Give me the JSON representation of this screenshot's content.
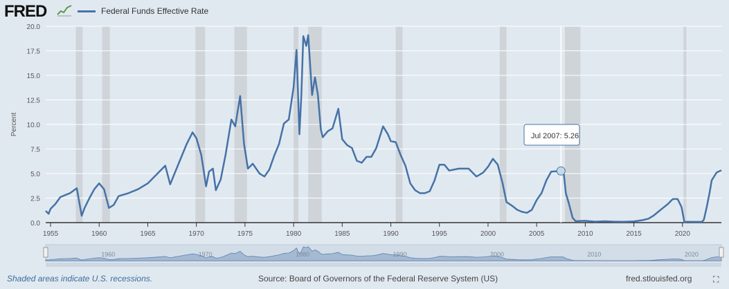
{
  "header": {
    "logo_text": "FRED",
    "legend_label": "Federal Funds Effective Rate",
    "series_color": "#4572a7"
  },
  "tooltip": {
    "date": "Jul 2007",
    "value": "5.26"
  },
  "footer": {
    "left": "Shaded areas indicate U.S. recessions.",
    "center": "Source: Board of Governors of the Federal Reserve System (US)",
    "right": "fred.stlouisfed.org"
  },
  "chart_data": {
    "type": "line",
    "title": "",
    "xlabel": "",
    "ylabel": "Percent",
    "xlim": [
      1954.5,
      2024.0
    ],
    "ylim": [
      0,
      20
    ],
    "yticks": [
      "0.0",
      "2.5",
      "5.0",
      "7.5",
      "10.0",
      "12.5",
      "15.0",
      "17.5",
      "20.0"
    ],
    "xticks": [
      "1955",
      "1960",
      "1965",
      "1970",
      "1975",
      "1980",
      "1985",
      "1990",
      "1995",
      "2000",
      "2005",
      "2010",
      "2015",
      "2020"
    ],
    "navigator_ticks": [
      "1960",
      "1970",
      "1980",
      "1990",
      "2000",
      "2010",
      "2020"
    ],
    "grid": true,
    "legend": "top-left",
    "recessions": [
      [
        1957.6,
        1958.3
      ],
      [
        1960.3,
        1961.1
      ],
      [
        1969.9,
        1970.9
      ],
      [
        1973.9,
        1975.2
      ],
      [
        1980.0,
        1980.5
      ],
      [
        1981.5,
        1982.9
      ],
      [
        1990.5,
        1991.2
      ],
      [
        2001.2,
        2001.9
      ],
      [
        2007.9,
        2009.5
      ],
      [
        2020.1,
        2020.4
      ]
    ],
    "series": [
      {
        "name": "Federal Funds Effective Rate",
        "x": [
          1954.5,
          1954.8,
          1955.0,
          1955.5,
          1956.0,
          1956.5,
          1957.0,
          1957.7,
          1958.2,
          1958.5,
          1959.0,
          1959.5,
          1960.0,
          1960.5,
          1961.0,
          1961.5,
          1962.0,
          1963.0,
          1964.0,
          1965.0,
          1966.0,
          1966.8,
          1967.3,
          1968.0,
          1969.0,
          1969.6,
          1970.0,
          1970.5,
          1971.0,
          1971.3,
          1971.7,
          1972.0,
          1972.5,
          1973.0,
          1973.6,
          1974.0,
          1974.5,
          1974.9,
          1975.3,
          1975.8,
          1976.5,
          1977.0,
          1977.5,
          1978.0,
          1978.5,
          1979.0,
          1979.5,
          1980.0,
          1980.3,
          1980.6,
          1980.8,
          1981.0,
          1981.3,
          1981.5,
          1981.9,
          1982.2,
          1982.5,
          1982.8,
          1983.0,
          1983.5,
          1984.0,
          1984.6,
          1985.0,
          1985.5,
          1986.0,
          1986.5,
          1987.0,
          1987.5,
          1988.0,
          1988.5,
          1989.2,
          1989.7,
          1990.0,
          1990.5,
          1991.0,
          1991.5,
          1992.0,
          1992.5,
          1993.0,
          1993.5,
          1994.0,
          1994.5,
          1995.0,
          1995.5,
          1996.0,
          1997.0,
          1998.0,
          1998.8,
          1999.0,
          1999.5,
          2000.0,
          2000.5,
          2001.0,
          2001.5,
          2001.9,
          2002.5,
          2003.0,
          2003.5,
          2004.0,
          2004.5,
          2005.0,
          2005.5,
          2006.0,
          2006.5,
          2007.5,
          2007.8,
          2008.0,
          2008.3,
          2008.7,
          2009.0,
          2010.0,
          2011.0,
          2012.0,
          2013.0,
          2014.0,
          2015.0,
          2015.9,
          2016.5,
          2017.0,
          2017.5,
          2018.0,
          2018.5,
          2019.0,
          2019.5,
          2019.9,
          2020.2,
          2020.5,
          2021.0,
          2021.5,
          2022.0,
          2022.2,
          2022.5,
          2022.8,
          2023.0,
          2023.5,
          2024.0
        ],
        "y": [
          1.2,
          0.9,
          1.4,
          1.9,
          2.6,
          2.8,
          3.0,
          3.5,
          0.7,
          1.5,
          2.5,
          3.4,
          4.0,
          3.4,
          1.5,
          1.8,
          2.7,
          3.0,
          3.4,
          4.0,
          5.0,
          5.8,
          3.9,
          5.6,
          8.0,
          9.2,
          8.6,
          6.9,
          3.7,
          5.2,
          5.5,
          3.3,
          4.4,
          6.9,
          10.5,
          9.8,
          12.9,
          8.0,
          5.5,
          6.0,
          5.0,
          4.7,
          5.4,
          6.8,
          8.0,
          10.1,
          10.5,
          13.8,
          17.6,
          9.0,
          13.0,
          19.0,
          18.0,
          19.1,
          13.0,
          14.8,
          13.0,
          9.5,
          8.7,
          9.3,
          9.6,
          11.6,
          8.5,
          7.9,
          7.6,
          6.3,
          6.1,
          6.7,
          6.7,
          7.6,
          9.8,
          9.0,
          8.3,
          8.2,
          6.9,
          5.8,
          4.0,
          3.3,
          3.0,
          3.0,
          3.2,
          4.3,
          5.9,
          5.9,
          5.3,
          5.5,
          5.5,
          4.7,
          4.8,
          5.1,
          5.7,
          6.5,
          5.9,
          4.0,
          2.1,
          1.7,
          1.3,
          1.1,
          1.0,
          1.3,
          2.3,
          3.0,
          4.3,
          5.2,
          5.26,
          4.9,
          3.0,
          2.0,
          0.5,
          0.15,
          0.18,
          0.1,
          0.14,
          0.1,
          0.09,
          0.13,
          0.25,
          0.4,
          0.7,
          1.1,
          1.5,
          1.9,
          2.4,
          2.4,
          1.6,
          0.05,
          0.09,
          0.08,
          0.08,
          0.08,
          0.3,
          1.6,
          3.1,
          4.3,
          5.1,
          5.33
        ]
      }
    ]
  }
}
